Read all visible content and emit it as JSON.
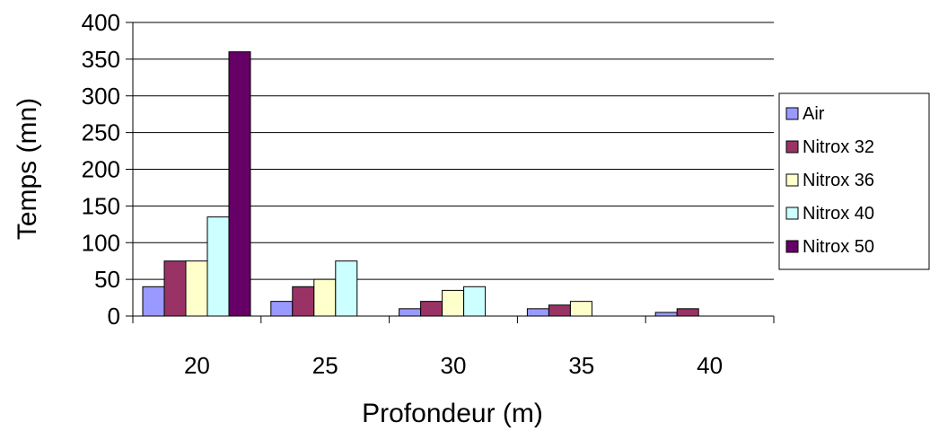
{
  "chart_data": {
    "type": "bar",
    "title": "",
    "xlabel": "Profondeur (m)",
    "ylabel": "Temps (mn)",
    "categories": [
      "20",
      "25",
      "30",
      "35",
      "40"
    ],
    "ylim": [
      0,
      400
    ],
    "yticks": [
      "0",
      "50",
      "100",
      "150",
      "200",
      "250",
      "300",
      "350",
      "400"
    ],
    "grid": true,
    "legend_position": "right",
    "series": [
      {
        "name": "Air",
        "color": "#9999ff",
        "values": [
          40,
          20,
          10,
          10,
          5
        ]
      },
      {
        "name": "Nitrox 32",
        "color": "#993366",
        "values": [
          75,
          40,
          20,
          15,
          10
        ]
      },
      {
        "name": "Nitrox 36",
        "color": "#ffffcc",
        "values": [
          75,
          50,
          35,
          20,
          0
        ]
      },
      {
        "name": "Nitrox 40",
        "color": "#ccffff",
        "values": [
          135,
          75,
          40,
          0,
          0
        ]
      },
      {
        "name": "Nitrox 50",
        "color": "#660066",
        "values": [
          360,
          0,
          0,
          0,
          0
        ]
      }
    ]
  }
}
